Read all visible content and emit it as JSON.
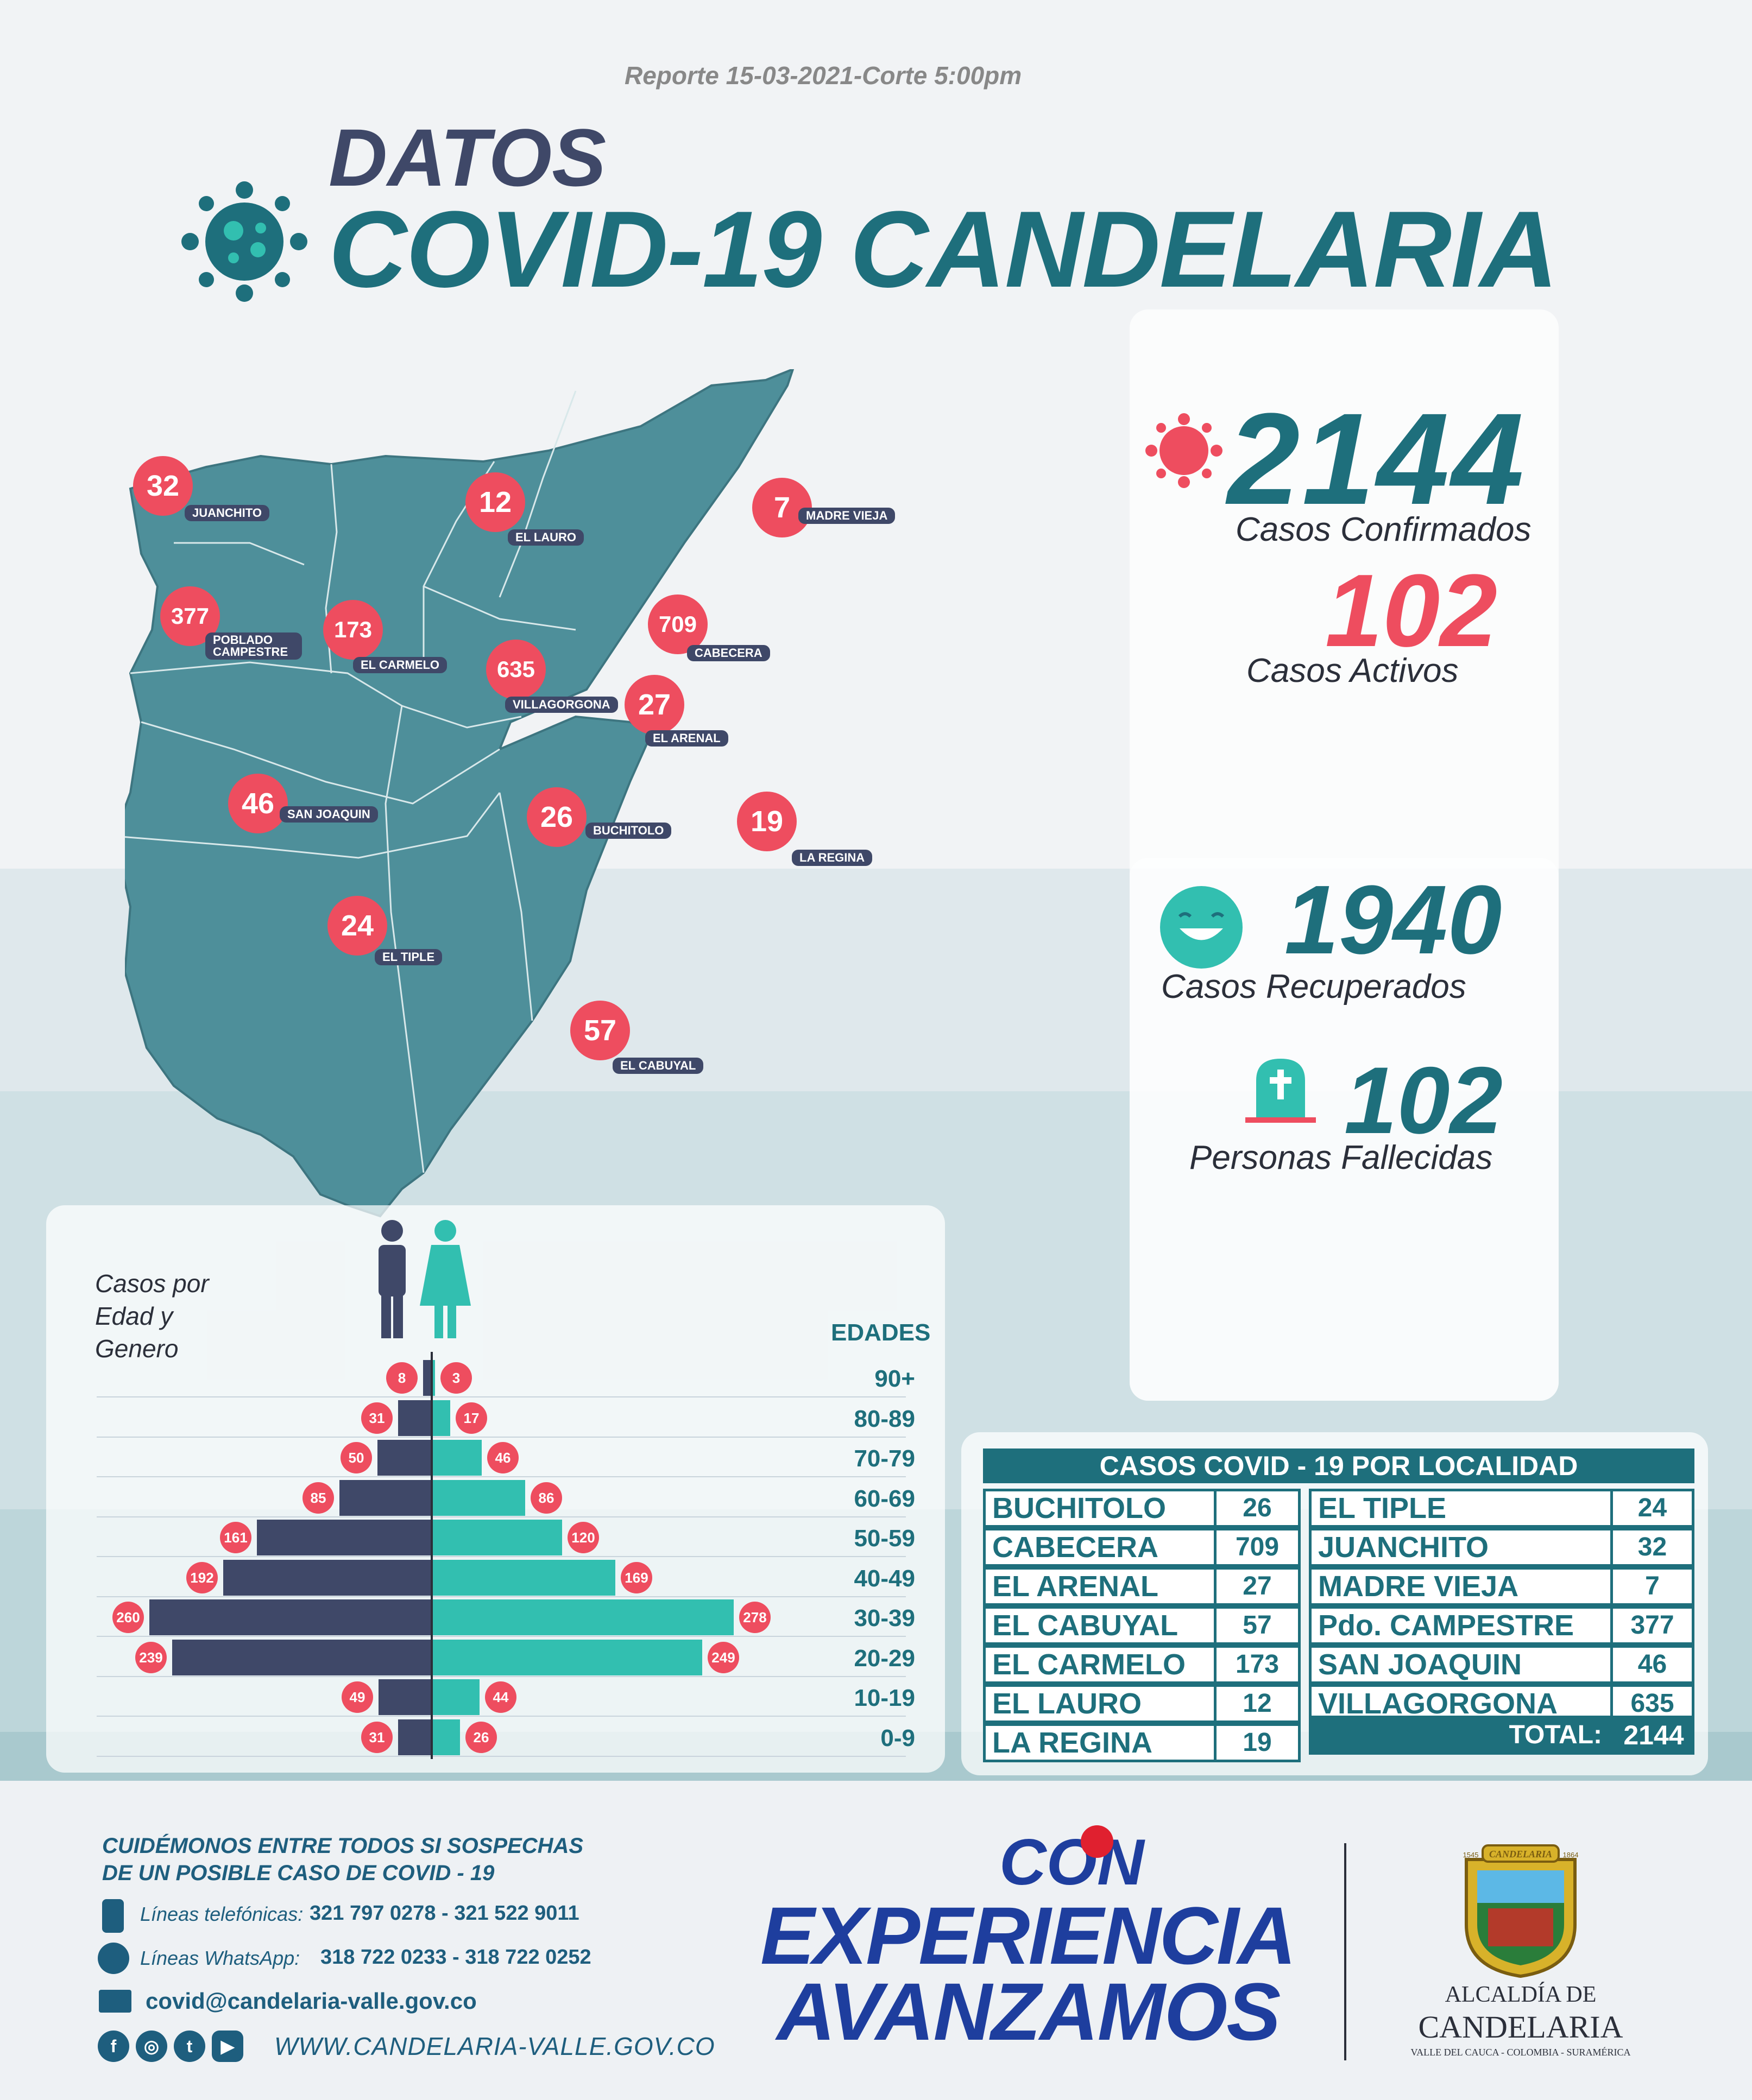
{
  "report": "Reporte 15-03-2021-Corte 5:00pm",
  "title": {
    "line1": "DATOS",
    "line2": "COVID-19 CANDELARIA"
  },
  "stats": {
    "confirmed": {
      "value": "2144",
      "label": "Casos Confirmados"
    },
    "active": {
      "value": "102",
      "label": "Casos Activos"
    },
    "recovered": {
      "value": "1940",
      "label": "Casos Recuperados"
    },
    "deceased": {
      "value": "102",
      "label": "Personas Fallecidas"
    }
  },
  "map": {
    "localities": [
      {
        "name": "JUANCHITO",
        "cases": "32"
      },
      {
        "name": "EL LAURO",
        "cases": "12"
      },
      {
        "name": "MADRE VIEJA",
        "cases": "7"
      },
      {
        "name": "POBLADO CAMPESTRE",
        "cases": "377"
      },
      {
        "name": "EL CARMELO",
        "cases": "173"
      },
      {
        "name": "CABECERA",
        "cases": "709"
      },
      {
        "name": "VILLAGORGONA",
        "cases": "635"
      },
      {
        "name": "EL ARENAL",
        "cases": "27"
      },
      {
        "name": "SAN JOAQUIN",
        "cases": "46"
      },
      {
        "name": "BUCHITOLO",
        "cases": "26"
      },
      {
        "name": "LA REGINA",
        "cases": "19"
      },
      {
        "name": "EL TIPLE",
        "cases": "24"
      },
      {
        "name": "EL CABUYAL",
        "cases": "57"
      }
    ]
  },
  "pyramid": {
    "title": "Casos por Edad y Genero",
    "ages_header": "EDADES",
    "rows": [
      {
        "age": "90+",
        "male": 8,
        "female": 3
      },
      {
        "age": "80-89",
        "male": 31,
        "female": 17
      },
      {
        "age": "70-79",
        "male": 50,
        "female": 46
      },
      {
        "age": "60-69",
        "male": 85,
        "female": 86
      },
      {
        "age": "50-59",
        "male": 161,
        "female": 120
      },
      {
        "age": "40-49",
        "male": 192,
        "female": 169
      },
      {
        "age": "30-39",
        "male": 260,
        "female": 278
      },
      {
        "age": "20-29",
        "male": 239,
        "female": 249
      },
      {
        "age": "10-19",
        "male": 49,
        "female": 44
      },
      {
        "age": "0-9",
        "male": 31,
        "female": 26
      }
    ]
  },
  "table": {
    "title": "CASOS COVID - 19 POR LOCALIDAD",
    "left": [
      {
        "name": "BUCHITOLO",
        "cases": "26"
      },
      {
        "name": "CABECERA",
        "cases": "709"
      },
      {
        "name": "EL ARENAL",
        "cases": "27"
      },
      {
        "name": "EL CABUYAL",
        "cases": "57"
      },
      {
        "name": "EL CARMELO",
        "cases": "173"
      },
      {
        "name": "EL LAURO",
        "cases": "12"
      },
      {
        "name": "LA REGINA",
        "cases": "19"
      }
    ],
    "right": [
      {
        "name": "EL TIPLE",
        "cases": "24"
      },
      {
        "name": "JUANCHITO",
        "cases": "32"
      },
      {
        "name": "MADRE VIEJA",
        "cases": "7"
      },
      {
        "name": "Pdo. CAMPESTRE",
        "cases": "377"
      },
      {
        "name": "SAN JOAQUIN",
        "cases": "46"
      },
      {
        "name": "VILLAGORGONA",
        "cases": "635"
      }
    ],
    "total_label": "TOTAL:",
    "total_value": "2144"
  },
  "footer": {
    "message_line1": "CUIDÉMONOS ENTRE TODOS SI SOSPECHAS",
    "message_line2": "DE UN POSIBLE CASO DE COVID - 19",
    "phone_label": "Líneas telefónicas:",
    "phone_numbers": "321 797 0278 - 321 522 9011",
    "whatsapp_label": "Líneas WhatsApp:",
    "whatsapp_numbers": "318 722 0233 - 318 722 0252",
    "email": "covid@candelaria-valle.gov.co",
    "website": "WWW.CANDELARIA-VALLE.GOV.CO",
    "slogan_line1": "CON",
    "slogan_line2": "EXPERIENCIA",
    "slogan_line3": "AVANZAMOS",
    "seal_banner": "CANDELARIA",
    "seal_year_left": "1545",
    "seal_year_right": "1864",
    "alcaldia_line1": "ALCALDÍA DE",
    "alcaldia_line2": "CANDELARIA",
    "alcaldia_line3": "VALLE DEL CAUCA - COLOMBIA - SURAMÉRICA"
  },
  "colors": {
    "teal": "#1e6f7c",
    "navy": "#3f4868",
    "red": "#ee4d5f",
    "mint": "#32bfb0",
    "map": "#4e8f9a"
  }
}
